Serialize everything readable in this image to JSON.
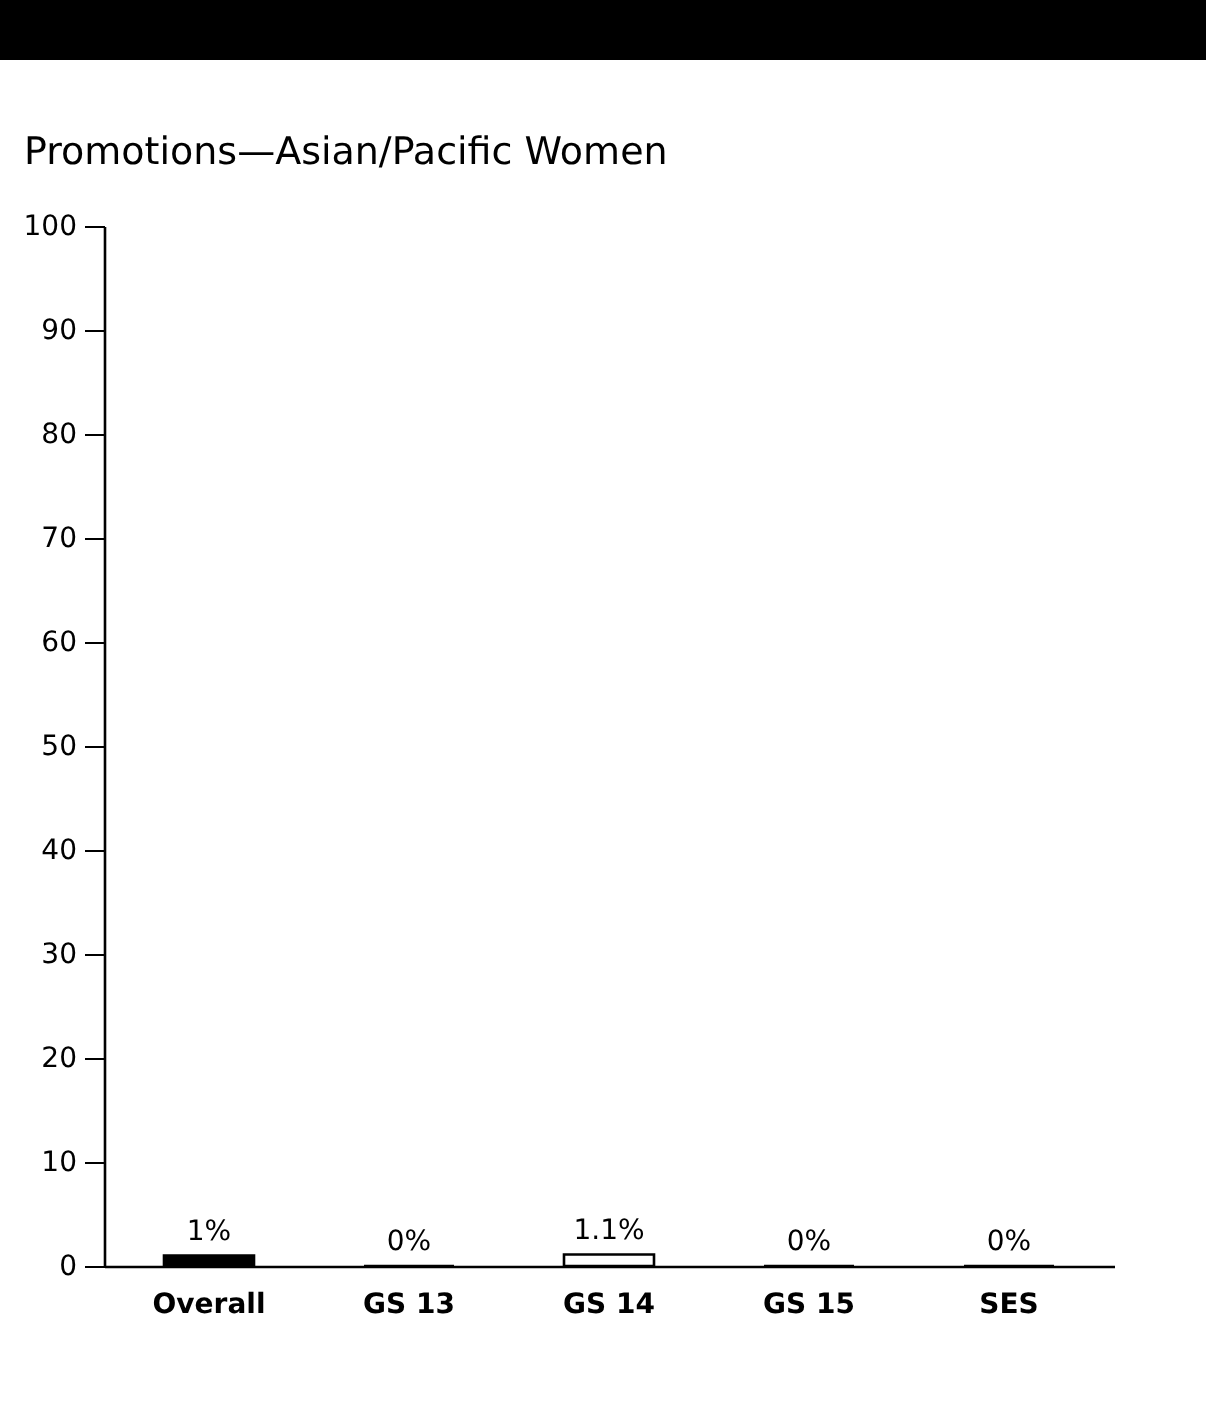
{
  "chart_data": {
    "type": "bar",
    "title": "Promotions—Asian/Pacific Women",
    "categories": [
      "Overall",
      "GS 13",
      "GS 14",
      "GS 15",
      "SES"
    ],
    "values": [
      1,
      0,
      1.1,
      0,
      0
    ],
    "value_labels": [
      "1%",
      "0%",
      "1.1%",
      "0%",
      "0%"
    ],
    "colors": [
      "#000000",
      "#000000",
      "#ffffff",
      "#000000",
      "#000000"
    ],
    "ylim": [
      0,
      100
    ],
    "yticks": [
      0,
      10,
      20,
      30,
      40,
      50,
      60,
      70,
      80,
      90,
      100
    ],
    "grid": false
  }
}
